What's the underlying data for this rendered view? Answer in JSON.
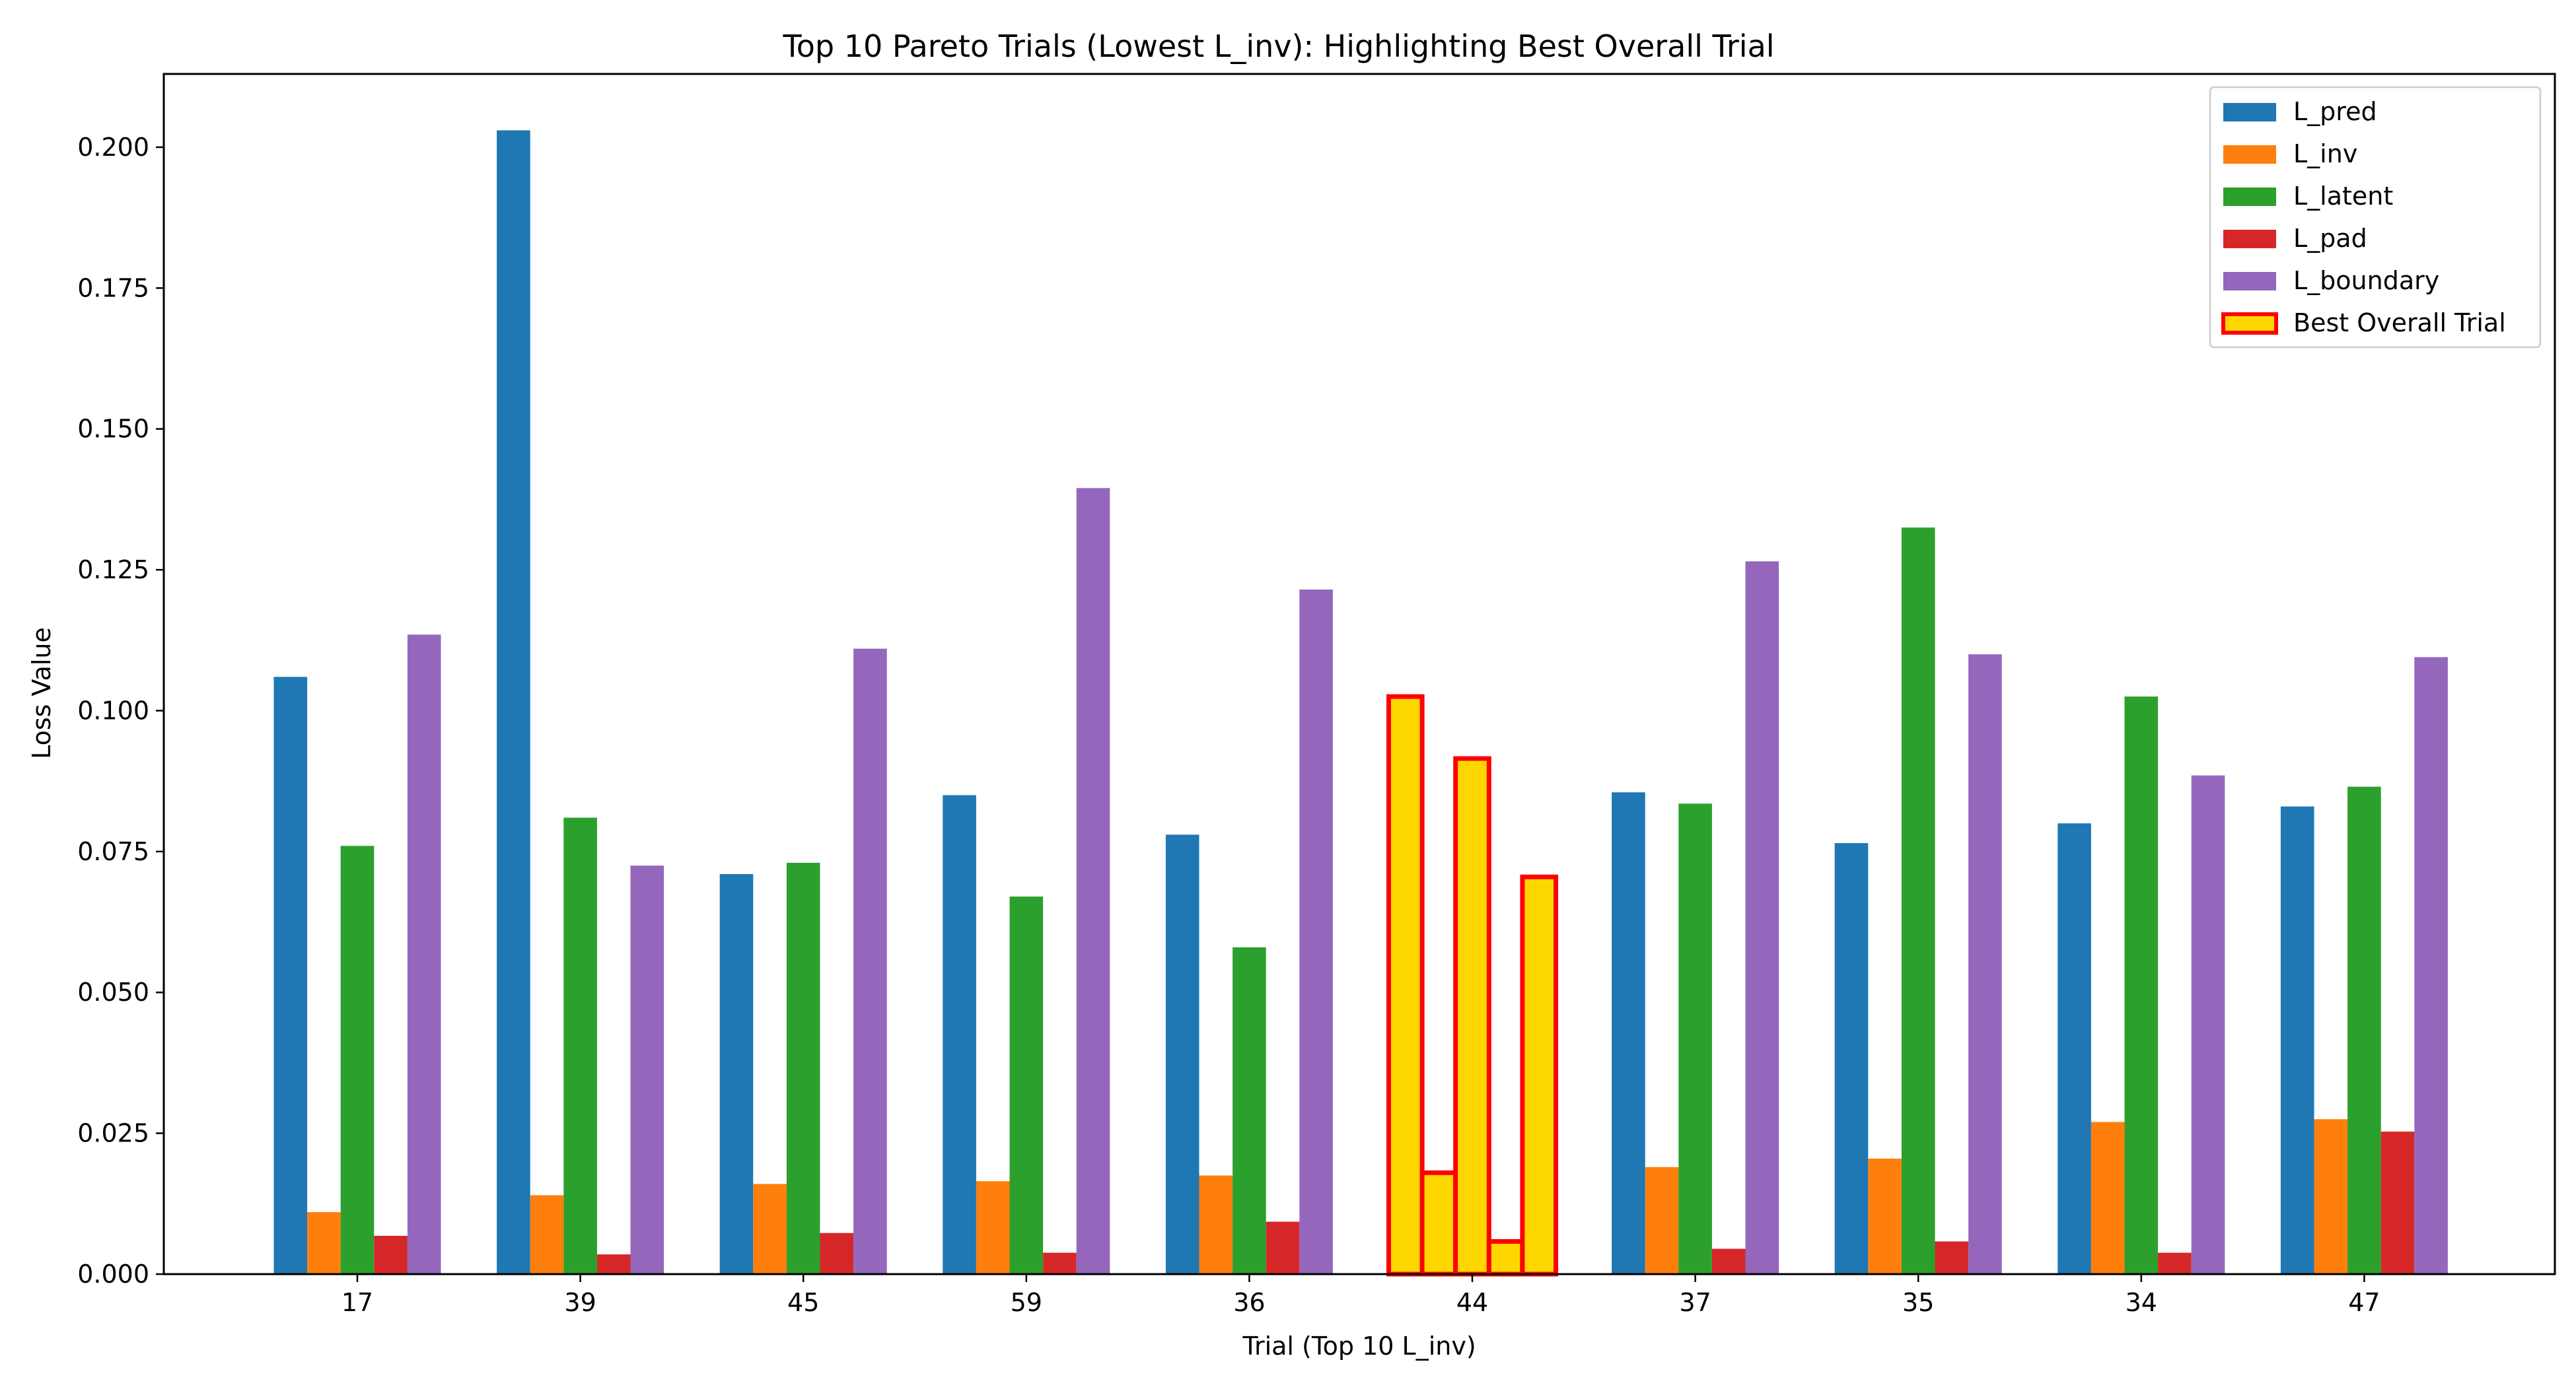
{
  "chart_data": {
    "type": "bar",
    "title": "Top 10 Pareto Trials (Lowest L_inv): Highlighting Best Overall Trial",
    "xlabel": "Trial (Top 10 L_inv)",
    "ylabel": "Loss Value",
    "ylim": [
      0,
      0.213
    ],
    "yticks": [
      "0.000",
      "0.025",
      "0.050",
      "0.075",
      "0.100",
      "0.125",
      "0.150",
      "0.175",
      "0.200"
    ],
    "categories": [
      "17",
      "39",
      "45",
      "59",
      "36",
      "44",
      "37",
      "35",
      "34",
      "47"
    ],
    "series": [
      {
        "name": "L_pred",
        "color": "#1f77b4",
        "values": [
          0.106,
          0.203,
          0.071,
          0.085,
          0.078,
          0.1025,
          0.0855,
          0.0765,
          0.08,
          0.083
        ]
      },
      {
        "name": "L_inv",
        "color": "#ff7f0e",
        "values": [
          0.011,
          0.014,
          0.016,
          0.0165,
          0.0175,
          0.018,
          0.019,
          0.0205,
          0.027,
          0.0275
        ]
      },
      {
        "name": "L_latent",
        "color": "#2ca02c",
        "values": [
          0.076,
          0.081,
          0.073,
          0.067,
          0.058,
          0.0915,
          0.0835,
          0.1325,
          0.1025,
          0.0865
        ]
      },
      {
        "name": "L_pad",
        "color": "#d62728",
        "values": [
          0.0068,
          0.0035,
          0.0073,
          0.0038,
          0.0093,
          0.0058,
          0.0045,
          0.0058,
          0.0038,
          0.0253
        ]
      },
      {
        "name": "L_boundary",
        "color": "#9467bd",
        "values": [
          0.1135,
          0.0725,
          0.111,
          0.1395,
          0.1215,
          0.0705,
          0.1265,
          0.11,
          0.0885,
          0.1095
        ]
      }
    ],
    "highlight": {
      "name": "Best Overall Trial",
      "category": "44",
      "fill": "#ffd700",
      "edge": "#ff0000"
    },
    "legend_position": "top-right",
    "grid": false
  }
}
